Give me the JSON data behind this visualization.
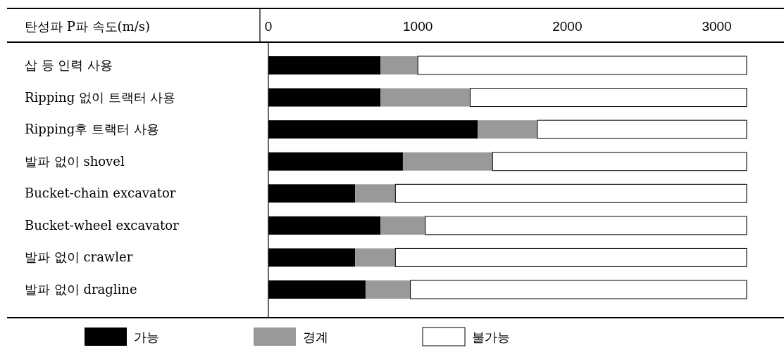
{
  "chart_data": {
    "type": "bar",
    "orientation": "horizontal",
    "stacked": true,
    "xlabel": "탄성파 P파 속도(m/s)",
    "categories": [
      "삽 등 인력 사용",
      "Ripping 없이 트랙터 사용",
      "Ripping후 트랙터 사용",
      "발파 없이 shovel",
      "Bucket-chain excavator",
      "Bucket-wheel excavator",
      "발파 없이 crawler",
      "발파 없이 dragline"
    ],
    "series": [
      {
        "name": "가능",
        "color": "#000000",
        "values": [
          750,
          750,
          1400,
          900,
          580,
          750,
          580,
          650
        ]
      },
      {
        "name": "경계",
        "color": "#999999",
        "values": [
          250,
          600,
          400,
          600,
          270,
          300,
          270,
          300
        ]
      },
      {
        "name": "불가능",
        "color": "#ffffff",
        "values": [
          2200,
          1850,
          1400,
          1700,
          2350,
          2150,
          2350,
          2250
        ]
      }
    ],
    "xlim": [
      0,
      3450
    ],
    "xticks": [
      0,
      1000,
      2000,
      3000
    ],
    "grid": false,
    "legend": "bottom"
  }
}
